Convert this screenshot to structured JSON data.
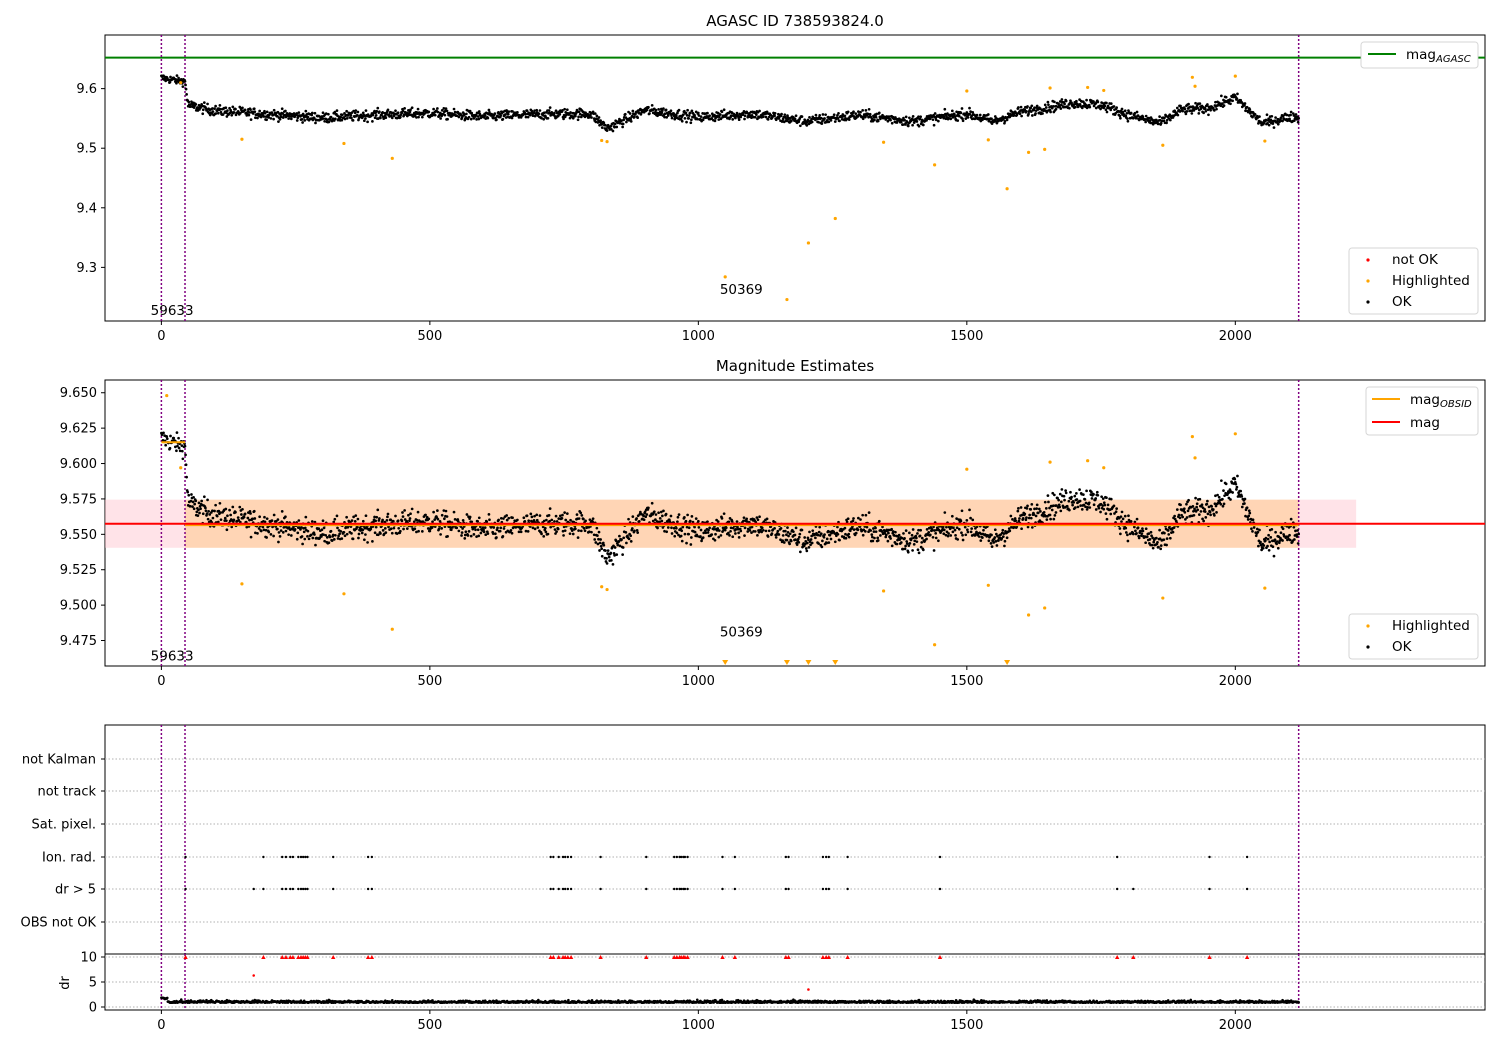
{
  "chart_data": [
    {
      "type": "scatter",
      "title": "AGASC ID 738593824.0",
      "xlabel": "",
      "ylabel": "",
      "xlim": [
        -105,
        2465
      ],
      "ylim": [
        9.21,
        9.69
      ],
      "xticks": [
        0,
        500,
        1000,
        1500,
        2000
      ],
      "yticks": [
        9.3,
        9.4,
        9.5,
        9.6
      ],
      "xtick_labels": [
        "0",
        "500",
        "1000",
        "1500",
        "2000"
      ],
      "ytick_labels": [
        "9.3",
        "9.4",
        "9.5",
        "9.6"
      ],
      "hlines": [
        {
          "name": "mag_AGASC",
          "value": 9.652
        }
      ],
      "vlines": [
        0,
        44,
        2118
      ],
      "annotations": [
        {
          "text": "59633",
          "x": -20,
          "y": 9.22
        },
        {
          "text": "50369",
          "x": 1040,
          "y": 9.255
        }
      ],
      "legend": {
        "position": "top-right",
        "entries": [
          {
            "main": "mag",
            "sub": "AGASC"
          }
        ]
      },
      "legend2": {
        "position": "bottom-right",
        "entries": [
          "not OK",
          "Highlighted",
          "OK"
        ]
      },
      "series": [
        {
          "name": "OK",
          "note": "dense band; levels by observation index",
          "profile_x": [
            0,
            20,
            44,
            50,
            100,
            200,
            300,
            400,
            500,
            600,
            700,
            800,
            830,
            900,
            1000,
            1100,
            1200,
            1300,
            1400,
            1500,
            1550,
            1600,
            1700,
            1750,
            1800,
            1860,
            1900,
            1950,
            2000,
            2050,
            2100,
            2118
          ],
          "profile_y": [
            9.618,
            9.615,
            9.612,
            9.572,
            9.563,
            9.557,
            9.551,
            9.556,
            9.559,
            9.553,
            9.557,
            9.558,
            9.533,
            9.564,
            9.552,
            9.558,
            9.545,
            9.556,
            9.545,
            9.558,
            9.545,
            9.561,
            9.576,
            9.573,
            9.556,
            9.542,
            9.565,
            9.567,
            9.585,
            9.542,
            9.552,
            9.552
          ]
        },
        {
          "name": "Highlighted",
          "x": [
            36,
            150,
            340,
            430,
            820,
            830,
            1050,
            1165,
            1205,
            1255,
            1345,
            1440,
            1500,
            1540,
            1575,
            1615,
            1645,
            1655,
            1725,
            1755,
            1865,
            1920,
            1925,
            2000,
            2055
          ],
          "y": [
            9.61,
            9.515,
            9.508,
            9.483,
            9.513,
            9.511,
            9.284,
            9.246,
            9.341,
            9.382,
            9.51,
            9.472,
            9.596,
            9.514,
            9.432,
            9.493,
            9.498,
            9.601,
            9.602,
            9.597,
            9.505,
            9.619,
            9.604,
            9.621,
            9.512
          ]
        }
      ]
    },
    {
      "type": "scatter",
      "title": "Magnitude Estimates",
      "xlabel": "",
      "ylabel": "",
      "xlim": [
        -105,
        2465
      ],
      "ylim": [
        9.457,
        9.659
      ],
      "xticks": [
        0,
        500,
        1000,
        1500,
        2000
      ],
      "yticks": [
        9.475,
        9.5,
        9.525,
        9.55,
        9.575,
        9.6,
        9.625,
        9.65
      ],
      "xtick_labels": [
        "0",
        "500",
        "1000",
        "1500",
        "2000"
      ],
      "ytick_labels": [
        "9.475",
        "9.500",
        "9.525",
        "9.550",
        "9.575",
        "9.600",
        "9.625",
        "9.650"
      ],
      "vlines": [
        0,
        44,
        2118
      ],
      "annotations": [
        {
          "text": "59633",
          "x": -20,
          "y": 9.461
        },
        {
          "text": "50369",
          "x": 1040,
          "y": 9.478
        }
      ],
      "lines": [
        {
          "name": "mag_OBSID segment",
          "x": [
            0,
            44
          ],
          "y": [
            9.615,
            9.615
          ],
          "color": "#ffa500"
        },
        {
          "name": "mag_OBSID",
          "x": [
            44,
            2118
          ],
          "y": [
            9.5565,
            9.5565
          ],
          "color": "#ffa500"
        },
        {
          "name": "mag",
          "x": [
            -105,
            2465
          ],
          "y": [
            9.5575,
            9.5575
          ],
          "color": "#ff0000"
        }
      ],
      "bands": [
        {
          "x": [
            -105,
            2225
          ],
          "y": [
            9.5405,
            9.5745
          ],
          "color": "#ffc0cb"
        },
        {
          "x": [
            44,
            2118
          ],
          "y": [
            9.5405,
            9.5745
          ],
          "color": "#ffa500"
        }
      ],
      "off_scale_markers_x": [
        1050,
        1165,
        1205,
        1255,
        1575
      ],
      "legend": {
        "position": "top-right",
        "entries": [
          {
            "main": "mag",
            "sub": "OBSID"
          },
          {
            "main": "mag",
            "sub": ""
          }
        ]
      },
      "legend2": {
        "position": "bottom-right",
        "entries": [
          "Highlighted",
          "OK"
        ]
      },
      "series": [
        {
          "name": "Highlighted",
          "x": [
            10,
            36,
            150,
            340,
            430,
            820,
            830,
            1345,
            1440,
            1500,
            1540,
            1615,
            1645,
            1655,
            1725,
            1755,
            1865,
            1920,
            1925,
            2000,
            2055
          ],
          "y": [
            9.648,
            9.597,
            9.515,
            9.508,
            9.483,
            9.513,
            9.511,
            9.51,
            9.472,
            9.596,
            9.514,
            9.493,
            9.498,
            9.601,
            9.602,
            9.597,
            9.505,
            9.619,
            9.604,
            9.621,
            9.512
          ]
        }
      ]
    },
    {
      "type": "scatter",
      "title": "",
      "xlim": [
        -105,
        2465
      ],
      "categories": [
        "not Kalman",
        "not track",
        "Sat. pixel.",
        "Ion. rad.",
        "dr > 5",
        "OBS not OK"
      ],
      "vlines": [
        0,
        44,
        2118
      ],
      "flags": {
        "ion_rad_x": [
          45,
          190,
          225,
          232,
          240,
          245,
          255,
          260,
          264,
          268,
          272,
          320,
          385,
          392,
          725,
          730,
          740,
          748,
          752,
          757,
          763,
          818,
          903,
          955,
          960,
          965,
          968,
          972,
          975,
          980,
          1045,
          1068,
          1163,
          1168,
          1232,
          1238,
          1243,
          1278,
          1450,
          1780,
          1952,
          2022
        ],
        "dr5_x": [
          45,
          172,
          190,
          225,
          232,
          240,
          245,
          255,
          260,
          264,
          268,
          272,
          320,
          385,
          392,
          725,
          730,
          740,
          748,
          752,
          757,
          763,
          818,
          903,
          955,
          960,
          965,
          968,
          972,
          975,
          980,
          1045,
          1068,
          1163,
          1168,
          1232,
          1238,
          1243,
          1278,
          1450,
          1780,
          1810,
          1952,
          2022
        ]
      }
    },
    {
      "type": "scatter",
      "title": "",
      "xlabel": "",
      "ylabel": "dr",
      "xlim": [
        -105,
        2465
      ],
      "ylim": [
        -0.6,
        10.6
      ],
      "xticks": [
        0,
        500,
        1000,
        1500,
        2000
      ],
      "yticks": [
        0,
        5,
        10
      ],
      "xtick_labels": [
        "0",
        "500",
        "1000",
        "1500",
        "2000"
      ],
      "ytick_labels": [
        "0",
        "5",
        "10"
      ],
      "vlines": [
        0,
        44,
        2118
      ],
      "series": [
        {
          "name": "dr (OK)",
          "note": "values near 0.5–1.5 across all observations"
        },
        {
          "name": "dr > 5",
          "x": [
            172,
            1205
          ],
          "y": [
            6.3,
            3.5
          ],
          "clipped_at_10_x": [
            45,
            190,
            225,
            232,
            240,
            245,
            255,
            260,
            264,
            268,
            272,
            320,
            385,
            392,
            725,
            730,
            740,
            748,
            752,
            757,
            763,
            818,
            903,
            955,
            960,
            965,
            968,
            972,
            975,
            980,
            1045,
            1068,
            1163,
            1168,
            1232,
            1238,
            1243,
            1278,
            1450,
            1780,
            1810,
            1952,
            2022
          ]
        }
      ]
    }
  ]
}
